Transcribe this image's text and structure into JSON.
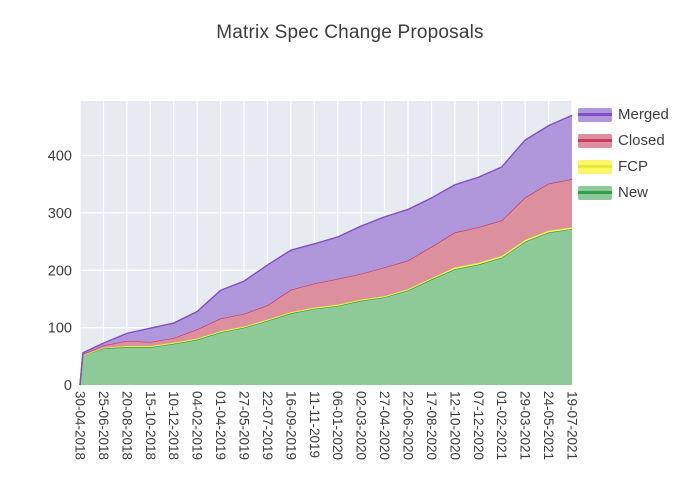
{
  "title": "Matrix Spec Change Proposals",
  "palette": {
    "plot_background": "#e8eaf2",
    "gridline": "#ffffff",
    "text": "#3d3d3d",
    "merged_fill": "#b097dc",
    "merged_line": "#7e50c8",
    "closed_fill": "#dc8f9c",
    "closed_line": "#cd3a5f",
    "fcp_fill": "#f9f767",
    "fcp_line": "#e8e838",
    "new_fill": "#8dca98",
    "new_line": "#2f9e4f"
  },
  "chart_data": {
    "type": "area",
    "stacked": true,
    "title": "Matrix Spec Change Proposals",
    "xlabel": "",
    "ylabel": "",
    "ylim": [
      0,
      495
    ],
    "y_ticks": [
      0,
      100,
      200,
      300,
      400
    ],
    "grid": true,
    "legend_position": "right",
    "legend_order": [
      "Merged",
      "Closed",
      "FCP",
      "New"
    ],
    "x_tick_labels": [
      "30-04-2018",
      "25-06-2018",
      "20-08-2018",
      "15-10-2018",
      "10-12-2018",
      "04-02-2019",
      "01-04-2019",
      "27-05-2019",
      "22-07-2019",
      "16-09-2019",
      "11-11-2019",
      "06-01-2020",
      "02-03-2020",
      "27-04-2020",
      "22-06-2020",
      "17-08-2020",
      "12-10-2020",
      "07-12-2020",
      "01-02-2021",
      "29-03-2021",
      "24-05-2021",
      "19-07-2021"
    ],
    "x_dates": [
      "30-04-2018",
      "07-05-2018",
      "25-06-2018",
      "20-08-2018",
      "15-10-2018",
      "10-12-2018",
      "04-02-2019",
      "01-04-2019",
      "27-05-2019",
      "22-07-2019",
      "16-09-2019",
      "11-11-2019",
      "06-01-2020",
      "02-03-2020",
      "27-04-2020",
      "22-06-2020",
      "17-08-2020",
      "12-10-2020",
      "07-12-2020",
      "01-02-2021",
      "29-03-2021",
      "24-05-2021",
      "19-07-2021"
    ],
    "series": [
      {
        "name": "New",
        "fill_key": "new_fill",
        "line_key": "new_line",
        "values": [
          0,
          52,
          64,
          66,
          66,
          72,
          79,
          92,
          100,
          112,
          125,
          133,
          138,
          147,
          153,
          165,
          184,
          202,
          210,
          222,
          250,
          266,
          272
        ]
      },
      {
        "name": "FCP",
        "fill_key": "fcp_fill",
        "line_key": "fcp_line",
        "values": [
          0,
          0,
          1,
          2,
          2,
          2,
          2,
          2,
          2,
          2,
          2,
          2,
          2,
          2,
          2,
          2,
          2,
          3,
          3,
          3,
          3,
          3,
          3
        ]
      },
      {
        "name": "Closed",
        "fill_key": "closed_fill",
        "line_key": "closed_line",
        "values": [
          0,
          2,
          4,
          9,
          7,
          8,
          16,
          22,
          22,
          25,
          39,
          42,
          45,
          45,
          50,
          50,
          55,
          61,
          62,
          62,
          74,
          82,
          84
        ]
      },
      {
        "name": "Merged",
        "fill_key": "merged_fill",
        "line_key": "merged_line",
        "values": [
          0,
          2,
          4,
          13,
          24,
          26,
          31,
          49,
          57,
          70,
          69,
          69,
          73,
          83,
          88,
          89,
          85,
          83,
          87,
          93,
          100,
          101,
          111
        ]
      }
    ]
  }
}
